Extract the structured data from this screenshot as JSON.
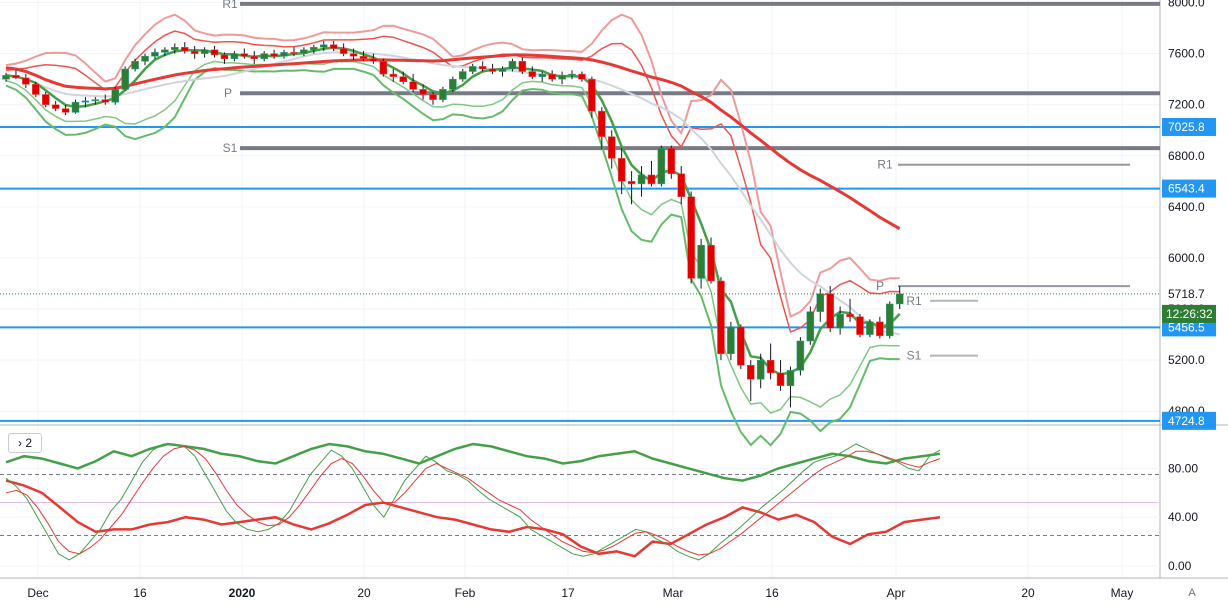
{
  "chart_data": {
    "type": "candlestick",
    "instrument_note": "",
    "price_axis": {
      "ticks": [
        4800,
        5200,
        5600,
        6000,
        6400,
        6800,
        7200,
        7600,
        8000
      ],
      "tick_labels": [
        "4800.0",
        "5200.0",
        "5600.0",
        "6000.0",
        "6400.0",
        "6800.0",
        "7200.0",
        "7600.0",
        "8000.0"
      ],
      "range": [
        4700,
        8020
      ]
    },
    "time_axis": {
      "labels": [
        "Dec",
        "16",
        "2020",
        "20",
        "Feb",
        "17",
        "Mar",
        "16",
        "Apr",
        "20",
        "May"
      ],
      "bold_labels": [
        "2020"
      ]
    },
    "price_labels": [
      {
        "value": 7025.8,
        "text": "7025.8",
        "color": "#2196f3"
      },
      {
        "value": 6543.4,
        "text": "6543.4",
        "color": "#2196f3"
      },
      {
        "value": 5718.7,
        "text": "5718.7",
        "color": "#ffffff"
      },
      {
        "value": 5456.5,
        "text": "5456.5",
        "color": "#2196f3"
      },
      {
        "value": 4724.8,
        "text": "4724.8",
        "color": "#2196f3"
      }
    ],
    "countdown": "12:26:32",
    "last_price": 5718.7,
    "horizontal_lines": [
      7025.8,
      6543.4,
      5456.5,
      4724.8
    ],
    "pivots": [
      {
        "label": "R1",
        "value": 7990
      },
      {
        "label": "P",
        "value": 7290
      },
      {
        "label": "S1",
        "value": 6860
      },
      {
        "label": "R1",
        "value": 6730
      },
      {
        "label": "P",
        "value": 5780
      },
      {
        "label": "R1",
        "value": 5665
      },
      {
        "label": "S1",
        "value": 5235
      }
    ],
    "candles": [
      {
        "t": "Dec 2",
        "o": 7400,
        "h": 7450,
        "l": 7380,
        "c": 7430
      },
      {
        "t": "Dec 3",
        "o": 7430,
        "h": 7470,
        "l": 7400,
        "c": 7410
      },
      {
        "t": "Dec 4",
        "o": 7410,
        "h": 7440,
        "l": 7330,
        "c": 7360
      },
      {
        "t": "Dec 5",
        "o": 7360,
        "h": 7380,
        "l": 7260,
        "c": 7280
      },
      {
        "t": "Dec 6",
        "o": 7280,
        "h": 7300,
        "l": 7180,
        "c": 7200
      },
      {
        "t": "Dec 9",
        "o": 7200,
        "h": 7230,
        "l": 7150,
        "c": 7170
      },
      {
        "t": "Dec 10",
        "o": 7170,
        "h": 7200,
        "l": 7120,
        "c": 7140
      },
      {
        "t": "Dec 11",
        "o": 7140,
        "h": 7240,
        "l": 7130,
        "c": 7220
      },
      {
        "t": "Dec 12",
        "o": 7220,
        "h": 7260,
        "l": 7180,
        "c": 7230
      },
      {
        "t": "Dec 13",
        "o": 7230,
        "h": 7260,
        "l": 7200,
        "c": 7240
      },
      {
        "t": "Dec 16",
        "o": 7240,
        "h": 7280,
        "l": 7200,
        "c": 7220
      },
      {
        "t": "Dec 17",
        "o": 7220,
        "h": 7340,
        "l": 7200,
        "c": 7320
      },
      {
        "t": "Dec 18",
        "o": 7320,
        "h": 7500,
        "l": 7310,
        "c": 7480
      },
      {
        "t": "Dec 19",
        "o": 7480,
        "h": 7560,
        "l": 7460,
        "c": 7540
      },
      {
        "t": "Dec 20",
        "o": 7540,
        "h": 7600,
        "l": 7510,
        "c": 7580
      },
      {
        "t": "Dec 23",
        "o": 7580,
        "h": 7640,
        "l": 7560,
        "c": 7610
      },
      {
        "t": "Dec 24",
        "o": 7610,
        "h": 7650,
        "l": 7580,
        "c": 7630
      },
      {
        "t": "Dec 25",
        "o": 7630,
        "h": 7680,
        "l": 7600,
        "c": 7650
      },
      {
        "t": "Dec 26",
        "o": 7650,
        "h": 7690,
        "l": 7600,
        "c": 7620
      },
      {
        "t": "Dec 27",
        "o": 7620,
        "h": 7660,
        "l": 7560,
        "c": 7600
      },
      {
        "t": "Dec 30",
        "o": 7600,
        "h": 7650,
        "l": 7570,
        "c": 7630
      },
      {
        "t": "Dec 31",
        "o": 7630,
        "h": 7660,
        "l": 7570,
        "c": 7590
      },
      {
        "t": "Jan 2",
        "o": 7590,
        "h": 7610,
        "l": 7520,
        "c": 7560
      },
      {
        "t": "Jan 3",
        "o": 7560,
        "h": 7620,
        "l": 7540,
        "c": 7600
      },
      {
        "t": "Jan 6",
        "o": 7600,
        "h": 7640,
        "l": 7560,
        "c": 7580
      },
      {
        "t": "Jan 7",
        "o": 7580,
        "h": 7620,
        "l": 7520,
        "c": 7560
      },
      {
        "t": "Jan 8",
        "o": 7560,
        "h": 7620,
        "l": 7540,
        "c": 7600
      },
      {
        "t": "Jan 9",
        "o": 7600,
        "h": 7630,
        "l": 7560,
        "c": 7580
      },
      {
        "t": "Jan 10",
        "o": 7580,
        "h": 7630,
        "l": 7560,
        "c": 7610
      },
      {
        "t": "Jan 13",
        "o": 7610,
        "h": 7650,
        "l": 7580,
        "c": 7600
      },
      {
        "t": "Jan 14",
        "o": 7600,
        "h": 7650,
        "l": 7580,
        "c": 7630
      },
      {
        "t": "Jan 15",
        "o": 7630,
        "h": 7670,
        "l": 7600,
        "c": 7650
      },
      {
        "t": "Jan 16",
        "o": 7650,
        "h": 7700,
        "l": 7620,
        "c": 7670
      },
      {
        "t": "Jan 17",
        "o": 7670,
        "h": 7700,
        "l": 7620,
        "c": 7640
      },
      {
        "t": "Jan 20",
        "o": 7640,
        "h": 7680,
        "l": 7580,
        "c": 7600
      },
      {
        "t": "Jan 21",
        "o": 7600,
        "h": 7640,
        "l": 7550,
        "c": 7580
      },
      {
        "t": "Jan 22",
        "o": 7580,
        "h": 7620,
        "l": 7540,
        "c": 7560
      },
      {
        "t": "Jan 23",
        "o": 7560,
        "h": 7600,
        "l": 7520,
        "c": 7540
      },
      {
        "t": "Jan 24",
        "o": 7540,
        "h": 7560,
        "l": 7420,
        "c": 7440
      },
      {
        "t": "Jan 27",
        "o": 7440,
        "h": 7480,
        "l": 7380,
        "c": 7420
      },
      {
        "t": "Jan 28",
        "o": 7420,
        "h": 7460,
        "l": 7360,
        "c": 7380
      },
      {
        "t": "Jan 29",
        "o": 7380,
        "h": 7440,
        "l": 7300,
        "c": 7320
      },
      {
        "t": "Jan 30",
        "o": 7320,
        "h": 7360,
        "l": 7240,
        "c": 7280
      },
      {
        "t": "Jan 31",
        "o": 7280,
        "h": 7300,
        "l": 7200,
        "c": 7240
      },
      {
        "t": "Feb 3",
        "o": 7240,
        "h": 7340,
        "l": 7220,
        "c": 7320
      },
      {
        "t": "Feb 4",
        "o": 7320,
        "h": 7420,
        "l": 7300,
        "c": 7400
      },
      {
        "t": "Feb 5",
        "o": 7400,
        "h": 7480,
        "l": 7380,
        "c": 7460
      },
      {
        "t": "Feb 6",
        "o": 7460,
        "h": 7520,
        "l": 7440,
        "c": 7500
      },
      {
        "t": "Feb 7",
        "o": 7500,
        "h": 7540,
        "l": 7460,
        "c": 7480
      },
      {
        "t": "Feb 10",
        "o": 7480,
        "h": 7520,
        "l": 7440,
        "c": 7460
      },
      {
        "t": "Feb 11",
        "o": 7460,
        "h": 7500,
        "l": 7420,
        "c": 7480
      },
      {
        "t": "Feb 12",
        "o": 7480,
        "h": 7560,
        "l": 7460,
        "c": 7540
      },
      {
        "t": "Feb 13",
        "o": 7540,
        "h": 7570,
        "l": 7440,
        "c": 7460
      },
      {
        "t": "Feb 14",
        "o": 7460,
        "h": 7500,
        "l": 7400,
        "c": 7420
      },
      {
        "t": "Feb 17",
        "o": 7420,
        "h": 7460,
        "l": 7380,
        "c": 7440
      },
      {
        "t": "Feb 18",
        "o": 7440,
        "h": 7470,
        "l": 7380,
        "c": 7400
      },
      {
        "t": "Feb 19",
        "o": 7400,
        "h": 7460,
        "l": 7360,
        "c": 7430
      },
      {
        "t": "Feb 20",
        "o": 7430,
        "h": 7470,
        "l": 7400,
        "c": 7440
      },
      {
        "t": "Feb 21",
        "o": 7440,
        "h": 7460,
        "l": 7380,
        "c": 7400
      },
      {
        "t": "Feb 24",
        "o": 7400,
        "h": 7420,
        "l": 7100,
        "c": 7150
      },
      {
        "t": "Feb 25",
        "o": 7150,
        "h": 7180,
        "l": 6850,
        "c": 6950
      },
      {
        "t": "Feb 26",
        "o": 6950,
        "h": 7000,
        "l": 6700,
        "c": 6780
      },
      {
        "t": "Feb 27",
        "o": 6780,
        "h": 6860,
        "l": 6500,
        "c": 6600
      },
      {
        "t": "Feb 28",
        "o": 6600,
        "h": 6680,
        "l": 6420,
        "c": 6580
      },
      {
        "t": "Mar 2",
        "o": 6580,
        "h": 6720,
        "l": 6480,
        "c": 6650
      },
      {
        "t": "Mar 3",
        "o": 6650,
        "h": 6760,
        "l": 6560,
        "c": 6580
      },
      {
        "t": "Mar 4",
        "o": 6580,
        "h": 6880,
        "l": 6560,
        "c": 6860
      },
      {
        "t": "Mar 5",
        "o": 6860,
        "h": 6880,
        "l": 6620,
        "c": 6660
      },
      {
        "t": "Mar 6",
        "o": 6660,
        "h": 6720,
        "l": 6420,
        "c": 6480
      },
      {
        "t": "Mar 9",
        "o": 6480,
        "h": 6520,
        "l": 5800,
        "c": 5840
      },
      {
        "t": "Mar 10",
        "o": 5840,
        "h": 6150,
        "l": 5760,
        "c": 6100
      },
      {
        "t": "Mar 11",
        "o": 6100,
        "h": 6160,
        "l": 5800,
        "c": 5820
      },
      {
        "t": "Mar 12",
        "o": 5820,
        "h": 5850,
        "l": 5200,
        "c": 5250
      },
      {
        "t": "Mar 13",
        "o": 5250,
        "h": 5500,
        "l": 5200,
        "c": 5460
      },
      {
        "t": "Mar 16",
        "o": 5460,
        "h": 5480,
        "l": 5130,
        "c": 5160
      },
      {
        "t": "Mar 17",
        "o": 5160,
        "h": 5200,
        "l": 4880,
        "c": 5050
      },
      {
        "t": "Mar 18",
        "o": 5050,
        "h": 5250,
        "l": 4980,
        "c": 5200
      },
      {
        "t": "Mar 19",
        "o": 5200,
        "h": 5330,
        "l": 5050,
        "c": 5100
      },
      {
        "t": "Mar 20",
        "o": 5100,
        "h": 5200,
        "l": 4960,
        "c": 5000
      },
      {
        "t": "Mar 23",
        "o": 5000,
        "h": 5150,
        "l": 4830,
        "c": 5120
      },
      {
        "t": "Mar 24",
        "o": 5120,
        "h": 5380,
        "l": 5080,
        "c": 5350
      },
      {
        "t": "Mar 25",
        "o": 5350,
        "h": 5620,
        "l": 5320,
        "c": 5580
      },
      {
        "t": "Mar 26",
        "o": 5580,
        "h": 5760,
        "l": 5500,
        "c": 5720
      },
      {
        "t": "Mar 27",
        "o": 5720,
        "h": 5780,
        "l": 5420,
        "c": 5450
      },
      {
        "t": "Mar 30",
        "o": 5450,
        "h": 5620,
        "l": 5400,
        "c": 5560
      },
      {
        "t": "Mar 31",
        "o": 5560,
        "h": 5680,
        "l": 5500,
        "c": 5540
      },
      {
        "t": "Apr 1",
        "o": 5540,
        "h": 5560,
        "l": 5380,
        "c": 5400
      },
      {
        "t": "Apr 2",
        "o": 5400,
        "h": 5520,
        "l": 5380,
        "c": 5500
      },
      {
        "t": "Apr 3",
        "o": 5500,
        "h": 5540,
        "l": 5370,
        "c": 5390
      },
      {
        "t": "Apr 6",
        "o": 5390,
        "h": 5660,
        "l": 5370,
        "c": 5640
      },
      {
        "t": "Apr 7",
        "o": 5640,
        "h": 5780,
        "l": 5600,
        "c": 5718.7
      }
    ],
    "oscillator": {
      "legend": "2",
      "axis_ticks": [
        0,
        40,
        80
      ],
      "axis_labels": [
        "0.00",
        "40.00",
        "80.00"
      ],
      "levels": [
        25,
        52,
        75
      ],
      "series": [
        {
          "color": "#e53935",
          "values": [
            70,
            66,
            60,
            48,
            36,
            28,
            30,
            30,
            34,
            36,
            40,
            38,
            34,
            36,
            38,
            40,
            34,
            30,
            35,
            42,
            50,
            52,
            48,
            44,
            40,
            38,
            34,
            30,
            28,
            32,
            30,
            26,
            16,
            10,
            12,
            8,
            20,
            18,
            26,
            34,
            40,
            48,
            44,
            38,
            42,
            36,
            24,
            18,
            26,
            28,
            36,
            38,
            40
          ]
        },
        {
          "color": "#43a047",
          "values": [
            85,
            90,
            88,
            84,
            80,
            86,
            94,
            90,
            96,
            100,
            98,
            96,
            92,
            90,
            86,
            84,
            90,
            96,
            100,
            98,
            94,
            92,
            88,
            84,
            90,
            96,
            100,
            98,
            94,
            90,
            88,
            84,
            86,
            90,
            92,
            94,
            88,
            84,
            80,
            76,
            72,
            70,
            74,
            80,
            84,
            88,
            92,
            90,
            86,
            84,
            88,
            90,
            92
          ]
        }
      ]
    },
    "oscillator_series": [
      {
        "color": "#43a047",
        "values": [
          72,
          65,
          55,
          40,
          25,
          10,
          5,
          10,
          20,
          30,
          45,
          55,
          70,
          85,
          95,
          100,
          100,
          98,
          90,
          75,
          60,
          45,
          35,
          30,
          28,
          30,
          35,
          45,
          60,
          75,
          85,
          95,
          90,
          80,
          65,
          50,
          40,
          55,
          70,
          80,
          90,
          85,
          78,
          75,
          70,
          62,
          55,
          50,
          45,
          40,
          30,
          25,
          20,
          15,
          10,
          8,
          10,
          15,
          20,
          25,
          30,
          28,
          22,
          18,
          12,
          8,
          5,
          10,
          18,
          25,
          32,
          40,
          48,
          55,
          62,
          70,
          78,
          85,
          88,
          90,
          95,
          100,
          96,
          92,
          88,
          85,
          80,
          78,
          90,
          95
        ]
      },
      {
        "color": "#e53935",
        "values": [
          60,
          62,
          58,
          48,
          35,
          20,
          12,
          10,
          15,
          22,
          32,
          42,
          55,
          68,
          80,
          90,
          96,
          98,
          95,
          88,
          76,
          62,
          50,
          42,
          36,
          33,
          34,
          40,
          50,
          62,
          74,
          84,
          88,
          84,
          74,
          62,
          52,
          52,
          60,
          70,
          80,
          84,
          80,
          76,
          72,
          66,
          60,
          54,
          50,
          46,
          38,
          32,
          26,
          20,
          16,
          12,
          11,
          13,
          17,
          22,
          27,
          28,
          25,
          21,
          16,
          12,
          9,
          10,
          14,
          20,
          26,
          33,
          40,
          47,
          54,
          61,
          68,
          75,
          81,
          85,
          89,
          94,
          94,
          92,
          89,
          86,
          83,
          81,
          85,
          88
        ]
      }
    ]
  }
}
